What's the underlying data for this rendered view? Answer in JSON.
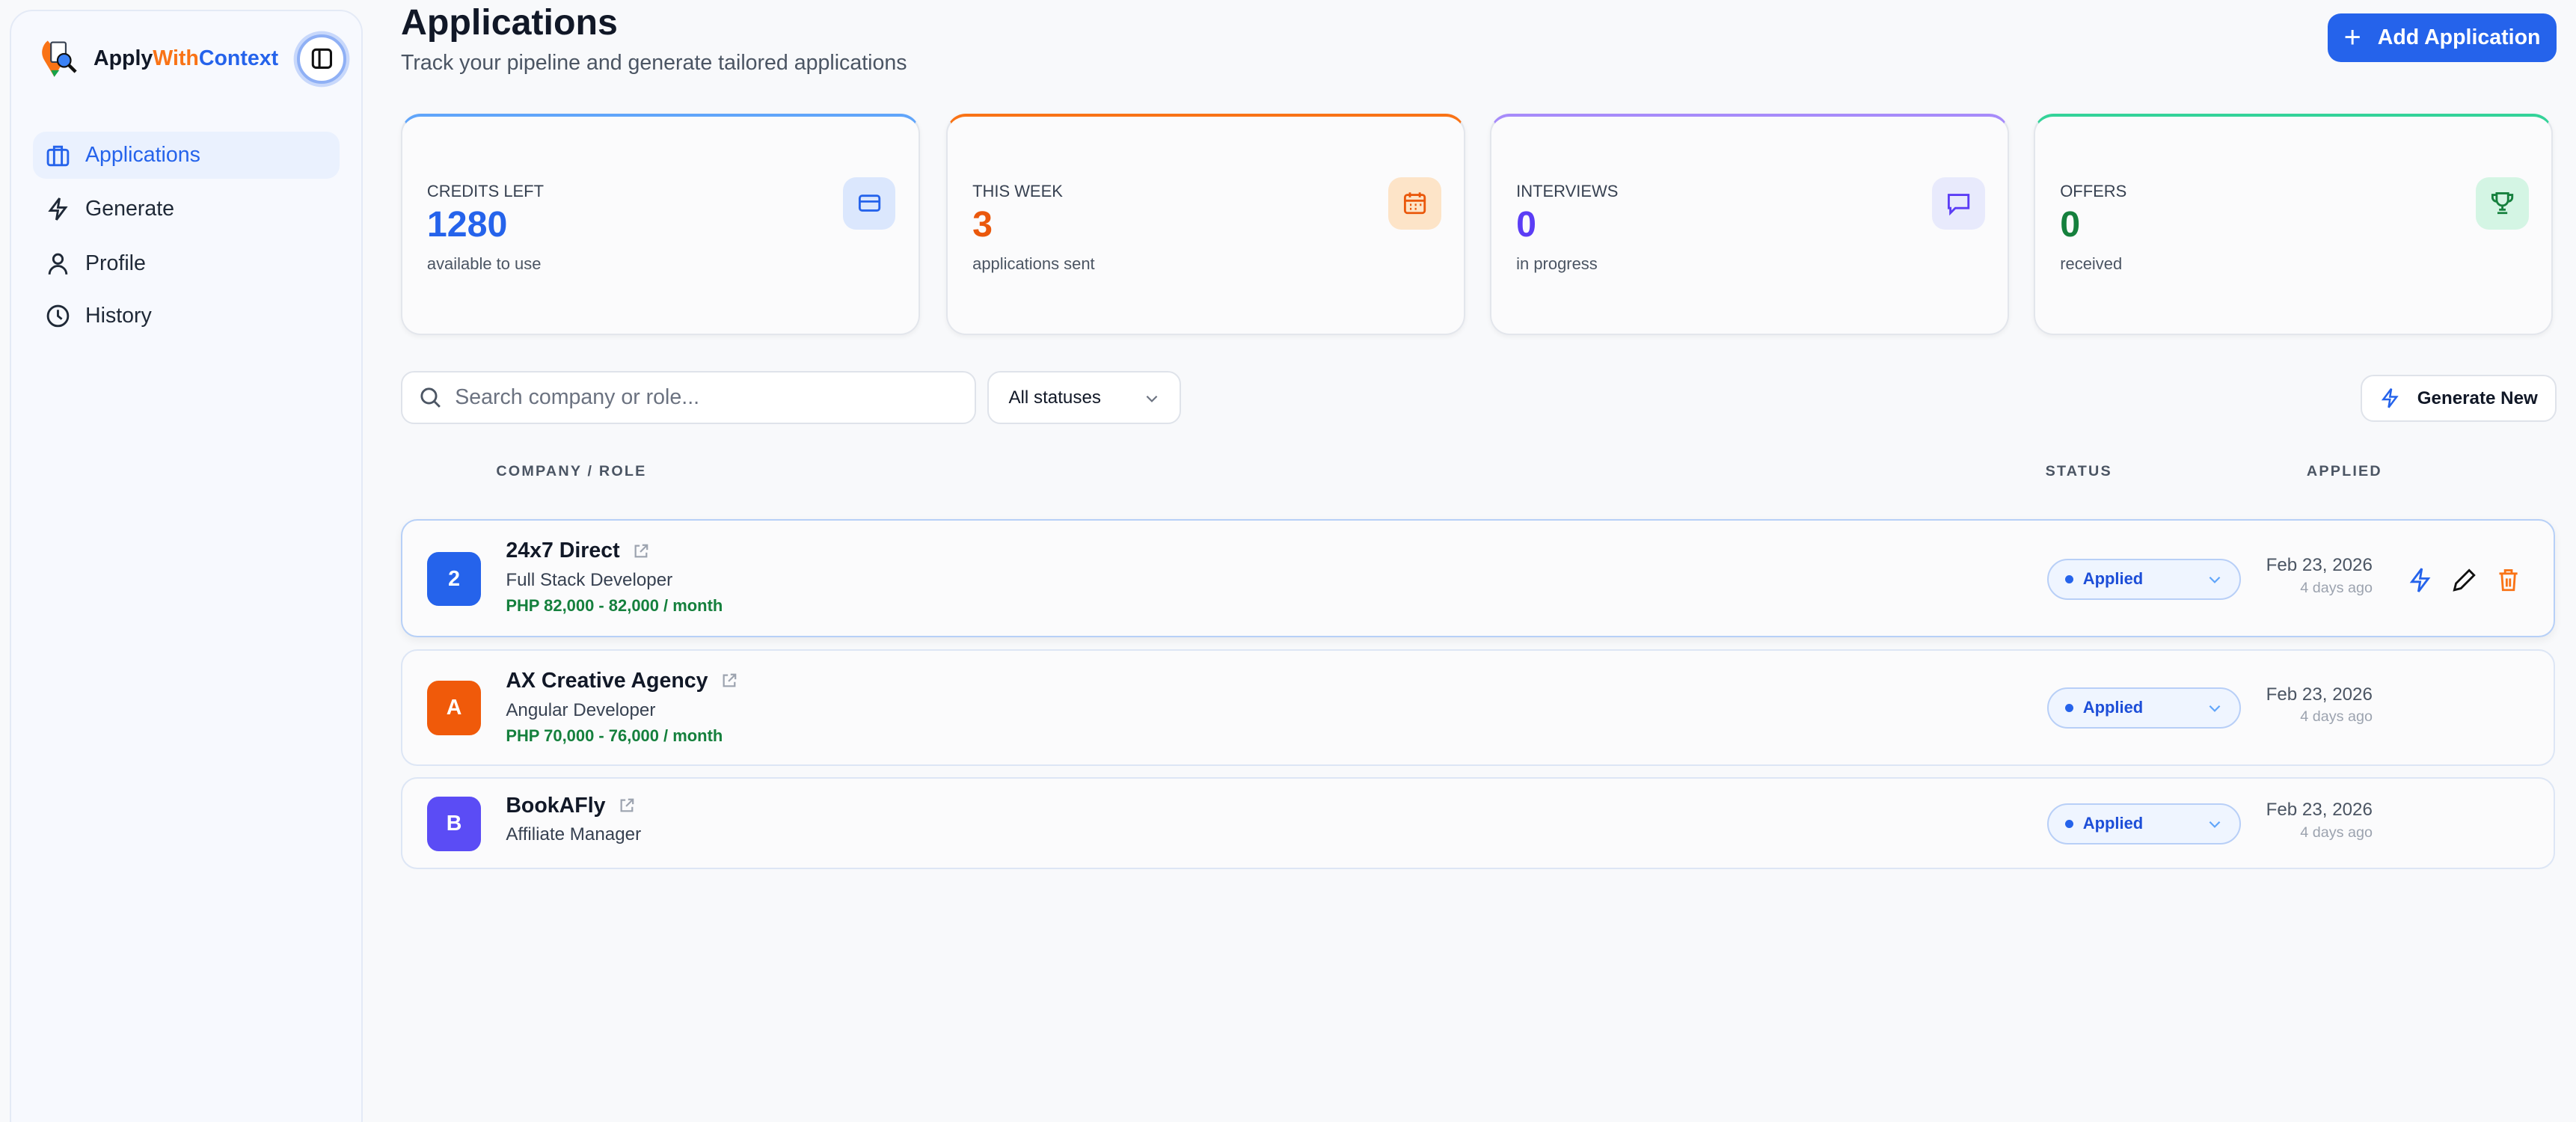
{
  "app": {
    "brand_part1": "Apply",
    "brand_part2": "With",
    "brand_part3": "Context"
  },
  "sidebar": {
    "items": [
      {
        "label": "Applications",
        "icon": "briefcase-icon",
        "active": true
      },
      {
        "label": "Generate",
        "icon": "bolt-icon"
      },
      {
        "label": "Profile",
        "icon": "user-icon"
      },
      {
        "label": "History",
        "icon": "clock-icon"
      }
    ]
  },
  "header": {
    "title": "Applications",
    "subtitle": "Track your pipeline and generate tailored applications",
    "add_label": "Add Application"
  },
  "stats": [
    {
      "label": "Credits Left",
      "value": "1280",
      "sub": "available to use",
      "color": "#2563eb",
      "accent": "#60a5fa",
      "icon": "credit-card-icon"
    },
    {
      "label": "This Week",
      "value": "3",
      "sub": "applications sent",
      "color": "#ea580c",
      "accent": "#f97316",
      "icon": "calendar-icon"
    },
    {
      "label": "Interviews",
      "value": "0",
      "sub": "in progress",
      "color": "#5b3df5",
      "accent": "#a78bfa",
      "icon": "message-icon"
    },
    {
      "label": "Offers",
      "value": "0",
      "sub": "received",
      "color": "#15803d",
      "accent": "#34d399",
      "icon": "trophy-icon"
    }
  ],
  "filters": {
    "search_placeholder": "Search company or role...",
    "status_value": "All statuses",
    "generate_label": "Generate New"
  },
  "table": {
    "headers": {
      "company": "COMPANY / ROLE",
      "status": "STATUS",
      "applied": "APPLIED"
    },
    "rows": [
      {
        "initial": "2",
        "company": "24x7 Direct",
        "role": "Full Stack Developer",
        "salary": "PHP 82,000 - 82,000 / month",
        "status": "Applied",
        "date": "Feb 23, 2026",
        "ago": "4 days ago",
        "avatar_color": "#2563eb"
      },
      {
        "initial": "A",
        "company": "AX Creative Agency",
        "role": "Angular Developer",
        "salary": "PHP 70,000 - 76,000 / month",
        "status": "Applied",
        "date": "Feb 23, 2026",
        "ago": "4 days ago",
        "avatar_color": "#f05a0a"
      },
      {
        "initial": "B",
        "company": "BookAFly",
        "role": "Affiliate Manager",
        "salary": "",
        "status": "Applied",
        "date": "Feb 23, 2026",
        "ago": "4 days ago",
        "avatar_color": "#5b4cf5"
      }
    ]
  }
}
